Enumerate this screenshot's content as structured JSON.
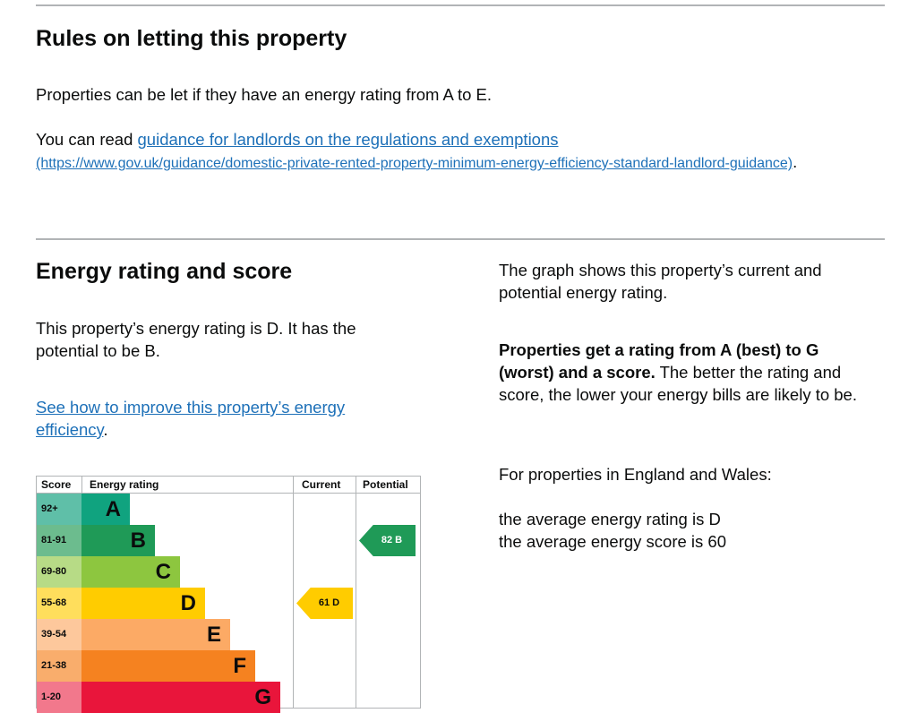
{
  "rules": {
    "title": "Rules on letting this property",
    "text": "Properties can be let if they have an energy rating from A to E.",
    "guidance_prefix": "You can read ",
    "guidance_link": "guidance for landlords on the regulations and exemptions",
    "guidance_url": "(https://www.gov.uk/guidance/domestic-private-rented-property-minimum-energy-efficiency-standard-landlord-guidance)",
    "guidance_suffix": "."
  },
  "energy": {
    "title": "Energy rating and score",
    "summary": "This property’s energy rating is D. It has the potential to be B.",
    "improve_link": "See how to improve this property’s energy efficiency",
    "improve_suffix": ".",
    "graph_desc": "The graph shows this property’s current and potential energy rating.",
    "bold_text": "Properties get a rating from A (best) to G (worst) and a score.",
    "rest_text": " The better the rating and score, the lower your energy bills are likely to be.",
    "region": "For properties in England and Wales:",
    "avg_rating": "the average energy rating is D",
    "avg_score": "the average energy score is 60"
  },
  "chart_data": {
    "type": "table",
    "headers": {
      "score": "Score",
      "rating": "Energy rating",
      "current": "Current",
      "potential": "Potential"
    },
    "bands": [
      {
        "score": "92+",
        "letter": "A",
        "color": "#10a37f",
        "tint": "#5fbfa8"
      },
      {
        "score": "81-91",
        "letter": "B",
        "color": "#1f9a57",
        "tint": "#6cbc8e"
      },
      {
        "score": "69-80",
        "letter": "C",
        "color": "#8dc63f",
        "tint": "#b7db86"
      },
      {
        "score": "55-68",
        "letter": "D",
        "color": "#ffcc00",
        "tint": "#ffde5c"
      },
      {
        "score": "39-54",
        "letter": "E",
        "color": "#fcaa65",
        "tint": "#fdc89c"
      },
      {
        "score": "21-38",
        "letter": "F",
        "color": "#f58220",
        "tint": "#f9ad6c"
      },
      {
        "score": "1-20",
        "letter": "G",
        "color": "#e9153b",
        "tint": "#f2788c"
      }
    ],
    "current": {
      "score": 61,
      "letter": "D",
      "label": "61  D"
    },
    "potential": {
      "score": 82,
      "letter": "B",
      "label": "82  B"
    }
  }
}
